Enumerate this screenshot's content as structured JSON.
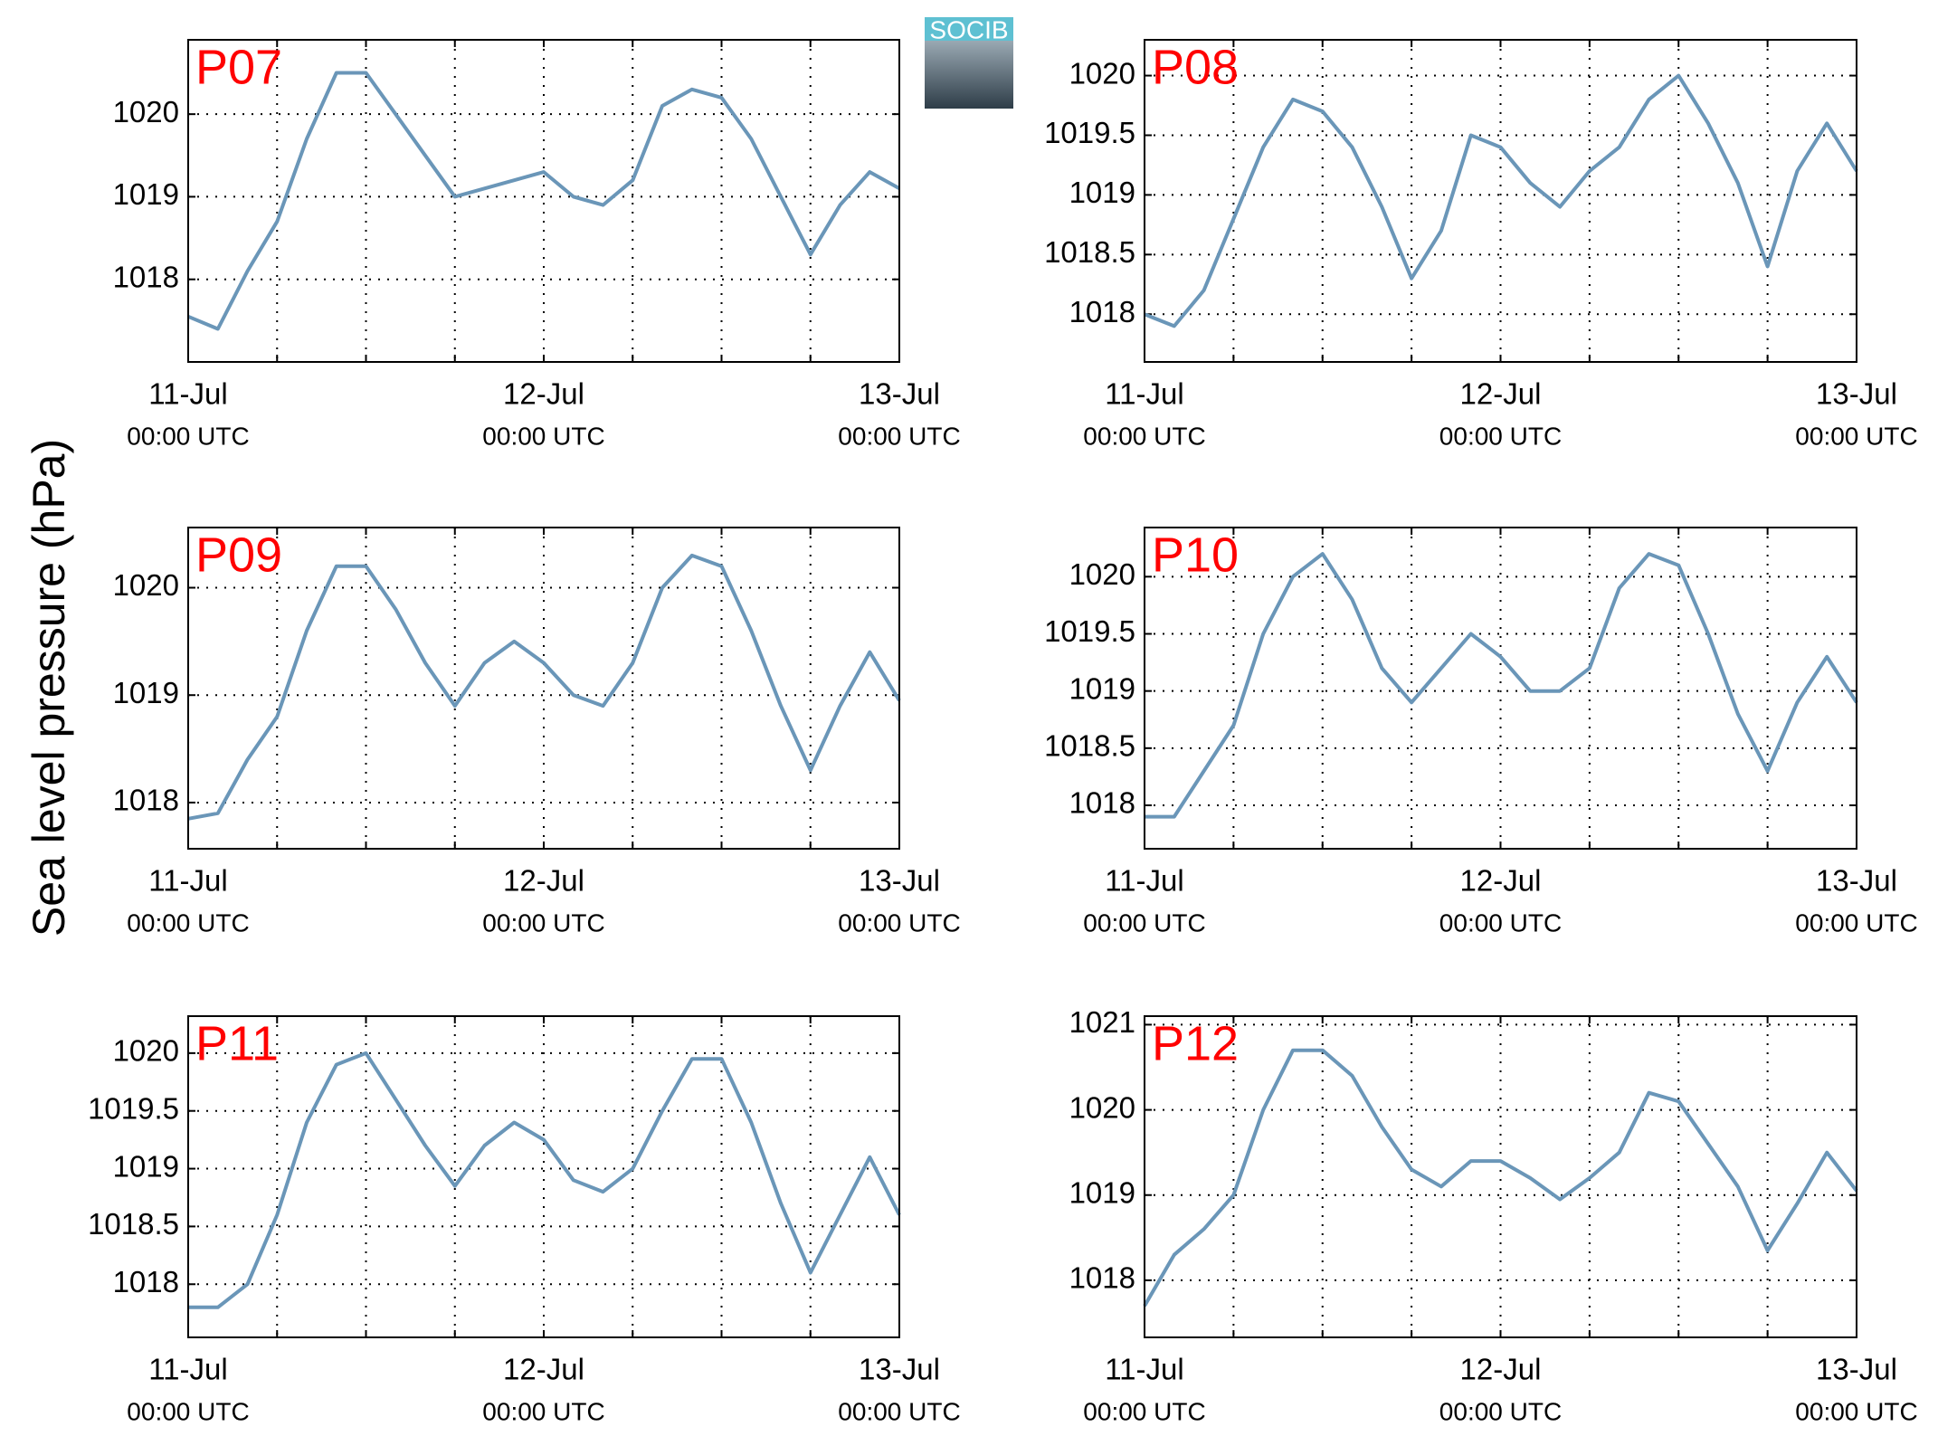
{
  "ylabel": "Sea level pressure (hPa)",
  "logo": "SOCIB",
  "chart_data": [
    {
      "type": "line",
      "title": "P07",
      "x": [
        0,
        2,
        4,
        6,
        8,
        10,
        12,
        14,
        16,
        18,
        20,
        22,
        24,
        26,
        28,
        30,
        32,
        34,
        36,
        38,
        40,
        42,
        44,
        46,
        48
      ],
      "series": [
        {
          "color": "#6a96b8",
          "values": [
            1017.55,
            1017.4,
            1018.1,
            1018.7,
            1019.7,
            1020.5,
            1020.5,
            1020.0,
            1019.5,
            1019.0,
            1019.1,
            1019.2,
            1019.3,
            1019.0,
            1018.9,
            1019.2,
            1020.1,
            1020.3,
            1020.2,
            1019.7,
            1019.0,
            1018.3,
            1018.9,
            1019.3,
            1019.1
          ]
        }
      ],
      "xlim": [
        0,
        48
      ],
      "xticks": [
        {
          "value": 0,
          "label": [
            "11-Jul",
            "00:00 UTC"
          ]
        },
        {
          "value": 6,
          "label": null
        },
        {
          "value": 12,
          "label": null
        },
        {
          "value": 18,
          "label": null
        },
        {
          "value": 24,
          "label": [
            "12-Jul",
            "00:00 UTC"
          ]
        },
        {
          "value": 30,
          "label": null
        },
        {
          "value": 36,
          "label": null
        },
        {
          "value": 42,
          "label": null
        },
        {
          "value": 48,
          "label": [
            "13-Jul",
            "00:00 UTC"
          ]
        }
      ],
      "ylim": [
        1017.0,
        1020.9
      ],
      "yticks": [
        1018,
        1019,
        1020
      ],
      "grid": true
    },
    {
      "type": "line",
      "title": "P08",
      "x": [
        0,
        2,
        4,
        6,
        8,
        10,
        12,
        14,
        16,
        18,
        20,
        22,
        24,
        26,
        28,
        30,
        32,
        34,
        36,
        38,
        40,
        42,
        44,
        46,
        48
      ],
      "series": [
        {
          "color": "#6a96b8",
          "values": [
            1018.0,
            1017.9,
            1018.2,
            1018.8,
            1019.4,
            1019.8,
            1019.7,
            1019.4,
            1018.9,
            1018.3,
            1018.7,
            1019.5,
            1019.4,
            1019.1,
            1018.9,
            1019.2,
            1019.4,
            1019.8,
            1020.0,
            1019.6,
            1019.1,
            1018.4,
            1019.2,
            1019.6,
            1019.2
          ]
        }
      ],
      "xlim": [
        0,
        48
      ],
      "xticks": [
        {
          "value": 0,
          "label": [
            "11-Jul",
            "00:00 UTC"
          ]
        },
        {
          "value": 6,
          "label": null
        },
        {
          "value": 12,
          "label": null
        },
        {
          "value": 18,
          "label": null
        },
        {
          "value": 24,
          "label": [
            "12-Jul",
            "00:00 UTC"
          ]
        },
        {
          "value": 30,
          "label": null
        },
        {
          "value": 36,
          "label": null
        },
        {
          "value": 42,
          "label": null
        },
        {
          "value": 48,
          "label": [
            "13-Jul",
            "00:00 UTC"
          ]
        }
      ],
      "ylim": [
        1017.6,
        1020.3
      ],
      "yticks": [
        1018,
        1018.5,
        1019,
        1019.5,
        1020
      ],
      "grid": true
    },
    {
      "type": "line",
      "title": "P09",
      "x": [
        0,
        2,
        4,
        6,
        8,
        10,
        12,
        14,
        16,
        18,
        20,
        22,
        24,
        26,
        28,
        30,
        32,
        34,
        36,
        38,
        40,
        42,
        44,
        46,
        48
      ],
      "series": [
        {
          "color": "#6a96b8",
          "values": [
            1017.85,
            1017.9,
            1018.4,
            1018.8,
            1019.6,
            1020.2,
            1020.2,
            1019.8,
            1019.3,
            1018.9,
            1019.3,
            1019.5,
            1019.3,
            1019.0,
            1018.9,
            1019.3,
            1020.0,
            1020.3,
            1020.2,
            1019.6,
            1018.9,
            1018.3,
            1018.9,
            1019.4,
            1018.95
          ]
        }
      ],
      "xlim": [
        0,
        48
      ],
      "xticks": [
        {
          "value": 0,
          "label": [
            "11-Jul",
            "00:00 UTC"
          ]
        },
        {
          "value": 6,
          "label": null
        },
        {
          "value": 12,
          "label": null
        },
        {
          "value": 18,
          "label": null
        },
        {
          "value": 24,
          "label": [
            "12-Jul",
            "00:00 UTC"
          ]
        },
        {
          "value": 30,
          "label": null
        },
        {
          "value": 36,
          "label": null
        },
        {
          "value": 42,
          "label": null
        },
        {
          "value": 48,
          "label": [
            "13-Jul",
            "00:00 UTC"
          ]
        }
      ],
      "ylim": [
        1017.57,
        1020.56
      ],
      "yticks": [
        1018,
        1019,
        1020
      ],
      "grid": true
    },
    {
      "type": "line",
      "title": "P10",
      "x": [
        0,
        2,
        4,
        6,
        8,
        10,
        12,
        14,
        16,
        18,
        20,
        22,
        24,
        26,
        28,
        30,
        32,
        34,
        36,
        38,
        40,
        42,
        44,
        46,
        48
      ],
      "series": [
        {
          "color": "#6a96b8",
          "values": [
            1017.9,
            1017.9,
            1018.3,
            1018.7,
            1019.5,
            1020.0,
            1020.2,
            1019.8,
            1019.2,
            1018.9,
            1019.2,
            1019.5,
            1019.3,
            1019.0,
            1019.0,
            1019.2,
            1019.9,
            1020.2,
            1020.1,
            1019.5,
            1018.8,
            1018.3,
            1018.9,
            1019.3,
            1018.9
          ]
        }
      ],
      "xlim": [
        0,
        48
      ],
      "xticks": [
        {
          "value": 0,
          "label": [
            "11-Jul",
            "00:00 UTC"
          ]
        },
        {
          "value": 6,
          "label": null
        },
        {
          "value": 12,
          "label": null
        },
        {
          "value": 18,
          "label": null
        },
        {
          "value": 24,
          "label": [
            "12-Jul",
            "00:00 UTC"
          ]
        },
        {
          "value": 30,
          "label": null
        },
        {
          "value": 36,
          "label": null
        },
        {
          "value": 42,
          "label": null
        },
        {
          "value": 48,
          "label": [
            "13-Jul",
            "00:00 UTC"
          ]
        }
      ],
      "ylim": [
        1017.62,
        1020.43
      ],
      "yticks": [
        1018,
        1018.5,
        1019,
        1019.5,
        1020
      ],
      "grid": true
    },
    {
      "type": "line",
      "title": "P11",
      "x": [
        0,
        2,
        4,
        6,
        8,
        10,
        12,
        14,
        16,
        18,
        20,
        22,
        24,
        26,
        28,
        30,
        32,
        34,
        36,
        38,
        40,
        42,
        44,
        46,
        48
      ],
      "series": [
        {
          "color": "#6a96b8",
          "values": [
            1017.8,
            1017.8,
            1018.0,
            1018.6,
            1019.4,
            1019.9,
            1020.0,
            1019.6,
            1019.2,
            1018.85,
            1019.2,
            1019.4,
            1019.25,
            1018.9,
            1018.8,
            1019.0,
            1019.5,
            1019.95,
            1019.95,
            1019.4,
            1018.7,
            1018.1,
            1018.6,
            1019.1,
            1018.6
          ]
        }
      ],
      "xlim": [
        0,
        48
      ],
      "xticks": [
        {
          "value": 0,
          "label": [
            "11-Jul",
            "00:00 UTC"
          ]
        },
        {
          "value": 6,
          "label": null
        },
        {
          "value": 12,
          "label": null
        },
        {
          "value": 18,
          "label": null
        },
        {
          "value": 24,
          "label": [
            "12-Jul",
            "00:00 UTC"
          ]
        },
        {
          "value": 30,
          "label": null
        },
        {
          "value": 36,
          "label": null
        },
        {
          "value": 42,
          "label": null
        },
        {
          "value": 48,
          "label": [
            "13-Jul",
            "00:00 UTC"
          ]
        }
      ],
      "ylim": [
        1017.54,
        1020.32
      ],
      "yticks": [
        1018,
        1018.5,
        1019,
        1019.5,
        1020
      ],
      "grid": true
    },
    {
      "type": "line",
      "title": "P12",
      "x": [
        0,
        2,
        4,
        6,
        8,
        10,
        12,
        14,
        16,
        18,
        20,
        22,
        24,
        26,
        28,
        30,
        32,
        34,
        36,
        38,
        40,
        42,
        44,
        46,
        48
      ],
      "series": [
        {
          "color": "#6a96b8",
          "values": [
            1017.7,
            1018.3,
            1018.6,
            1019.0,
            1020.0,
            1020.7,
            1020.7,
            1020.4,
            1019.8,
            1019.3,
            1019.1,
            1019.4,
            1019.4,
            1019.2,
            1018.95,
            1019.2,
            1019.5,
            1020.2,
            1020.1,
            1019.6,
            1019.1,
            1018.35,
            1018.9,
            1019.5,
            1019.05
          ]
        }
      ],
      "xlim": [
        0,
        48
      ],
      "xticks": [
        {
          "value": 0,
          "label": [
            "11-Jul",
            "00:00 UTC"
          ]
        },
        {
          "value": 6,
          "label": null
        },
        {
          "value": 12,
          "label": null
        },
        {
          "value": 18,
          "label": null
        },
        {
          "value": 24,
          "label": [
            "12-Jul",
            "00:00 UTC"
          ]
        },
        {
          "value": 30,
          "label": null
        },
        {
          "value": 36,
          "label": null
        },
        {
          "value": 42,
          "label": null
        },
        {
          "value": 48,
          "label": [
            "13-Jul",
            "00:00 UTC"
          ]
        }
      ],
      "ylim": [
        1017.33,
        1021.1
      ],
      "yticks": [
        1018,
        1019,
        1020,
        1021
      ],
      "grid": true
    }
  ]
}
